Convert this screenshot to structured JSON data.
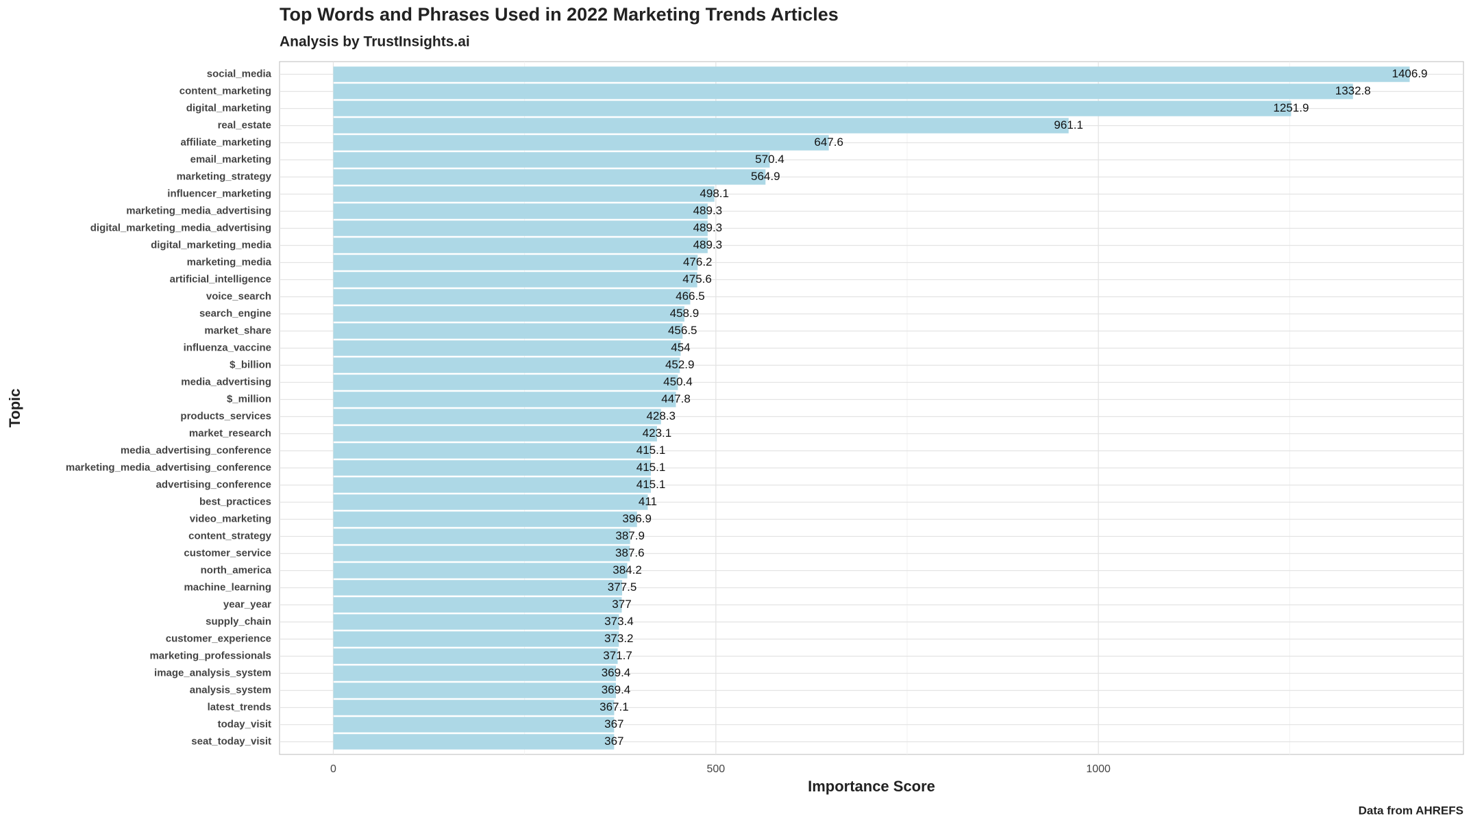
{
  "chart_data": {
    "type": "barh",
    "title": "Top Words and Phrases Used in 2022 Marketing Trends Articles",
    "subtitle": "Analysis by TrustInsights.ai",
    "x_label": "Importance Score",
    "y_label": "Topic",
    "caption": "Data from AHREFS",
    "categories": [
      "social_media",
      "content_marketing",
      "digital_marketing",
      "real_estate",
      "affiliate_marketing",
      "email_marketing",
      "marketing_strategy",
      "influencer_marketing",
      "marketing_media_advertising",
      "digital_marketing_media_advertising",
      "digital_marketing_media",
      "marketing_media",
      "artificial_intelligence",
      "voice_search",
      "search_engine",
      "market_share",
      "influenza_vaccine",
      "$_billion",
      "media_advertising",
      "$_million",
      "products_services",
      "market_research",
      "media_advertising_conference",
      "marketing_media_advertising_conference",
      "advertising_conference",
      "best_practices",
      "video_marketing",
      "content_strategy",
      "customer_service",
      "north_america",
      "machine_learning",
      "year_year",
      "supply_chain",
      "customer_experience",
      "marketing_professionals",
      "image_analysis_system",
      "analysis_system",
      "latest_trends",
      "today_visit",
      "seat_today_visit"
    ],
    "values": [
      1406.9,
      1332.8,
      1251.9,
      961.1,
      647.6,
      570.4,
      564.9,
      498.1,
      489.3,
      489.3,
      489.3,
      476.2,
      475.6,
      466.5,
      458.9,
      456.5,
      454,
      452.9,
      450.4,
      447.8,
      428.3,
      423.1,
      415.1,
      415.1,
      415.1,
      411,
      396.9,
      387.9,
      387.6,
      384.2,
      377.5,
      377,
      373.4,
      373.2,
      371.7,
      369.4,
      369.4,
      367.1,
      367,
      367
    ],
    "color": "#add8e6",
    "xlim": [
      -70.3,
      1477.2
    ],
    "xticks": [
      0,
      500,
      1000
    ],
    "x_minor_grid": [
      250,
      750,
      1250
    ],
    "grid": true
  }
}
